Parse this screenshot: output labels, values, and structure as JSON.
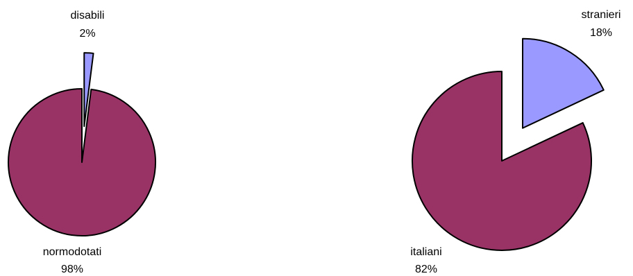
{
  "chart_data": [
    {
      "type": "pie",
      "slices": [
        {
          "label": "disabili",
          "percent_label": "2%",
          "value": 2,
          "color": "#9999ff",
          "exploded": true
        },
        {
          "label": "normodotati",
          "percent_label": "98%",
          "value": 98,
          "color": "#993366",
          "exploded": false
        }
      ]
    },
    {
      "type": "pie",
      "slices": [
        {
          "label": "stranieri",
          "percent_label": "18%",
          "value": 18,
          "color": "#9999ff",
          "exploded": true
        },
        {
          "label": "italiani",
          "percent_label": "82%",
          "value": 82,
          "color": "#993366",
          "exploded": false
        }
      ]
    }
  ]
}
